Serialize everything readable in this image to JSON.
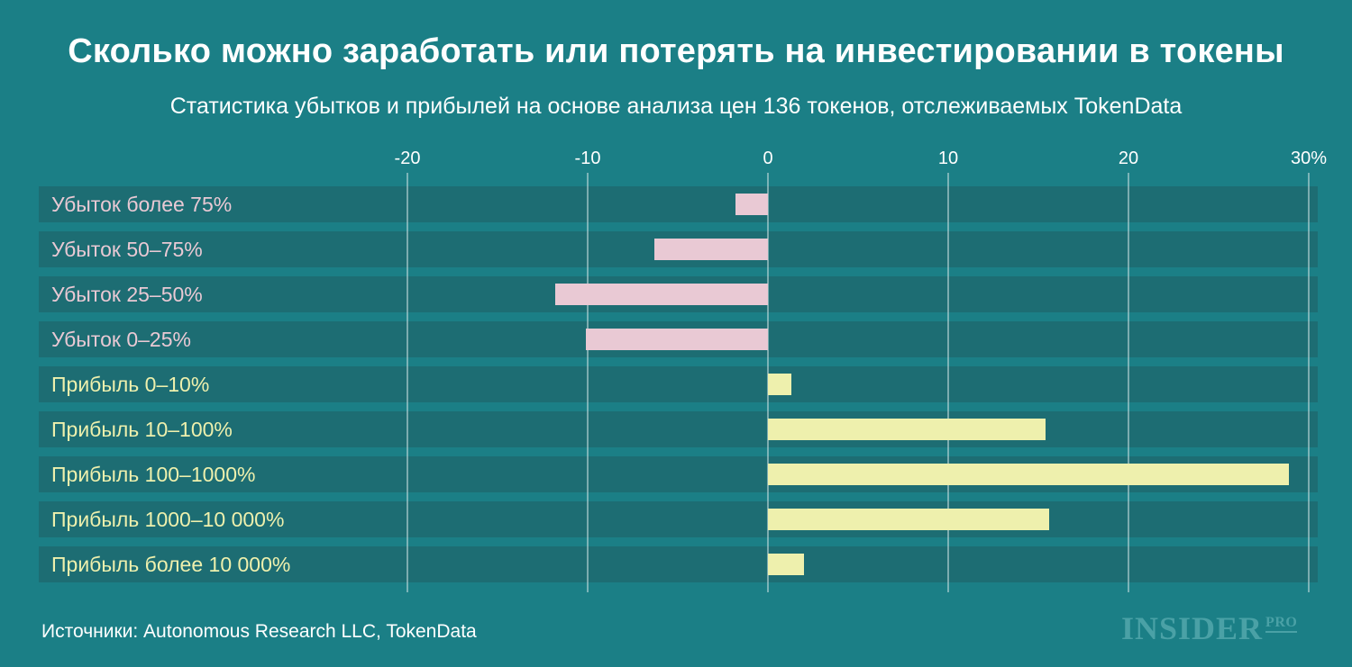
{
  "colors": {
    "background": "#1b7f86",
    "row_band": "#1d6d73",
    "loss": "#e9c9d4",
    "profit": "#eef0ad",
    "grid": "#c9dfe0"
  },
  "chart_data": {
    "type": "bar",
    "orientation": "horizontal",
    "title": "Сколько можно заработать или потерять на инвестировании в токены",
    "subtitle": "Статистика убытков и прибылей на основе анализа цен 136 токенов, отслеживаемых TokenData",
    "categories": [
      "Убыток более 75%",
      "Убыток 50–75%",
      "Убыток 25–50%",
      "Убыток 0–25%",
      "Прибыль 0–10%",
      "Прибыль 10–100%",
      "Прибыль 100–1000%",
      "Прибыль 1000–10 000%",
      "Прибыль более 10 000%"
    ],
    "values": [
      -1.8,
      -6.3,
      -11.8,
      -10.1,
      1.3,
      15.4,
      28.9,
      15.6,
      2.0
    ],
    "ticks": [
      {
        "value": -20,
        "label": "-20"
      },
      {
        "value": -10,
        "label": "-10"
      },
      {
        "value": 0,
        "label": "0"
      },
      {
        "value": 10,
        "label": "10"
      },
      {
        "value": 20,
        "label": "20"
      },
      {
        "value": 30,
        "label": "30%"
      }
    ],
    "xlim": [
      -20,
      30
    ],
    "axis_position": "top",
    "grid": true,
    "legend": "none"
  },
  "footer": {
    "source": "Источники: Autonomous Research LLC, TokenData",
    "logo_text": "INSIDER",
    "logo_suffix": "PRO"
  }
}
